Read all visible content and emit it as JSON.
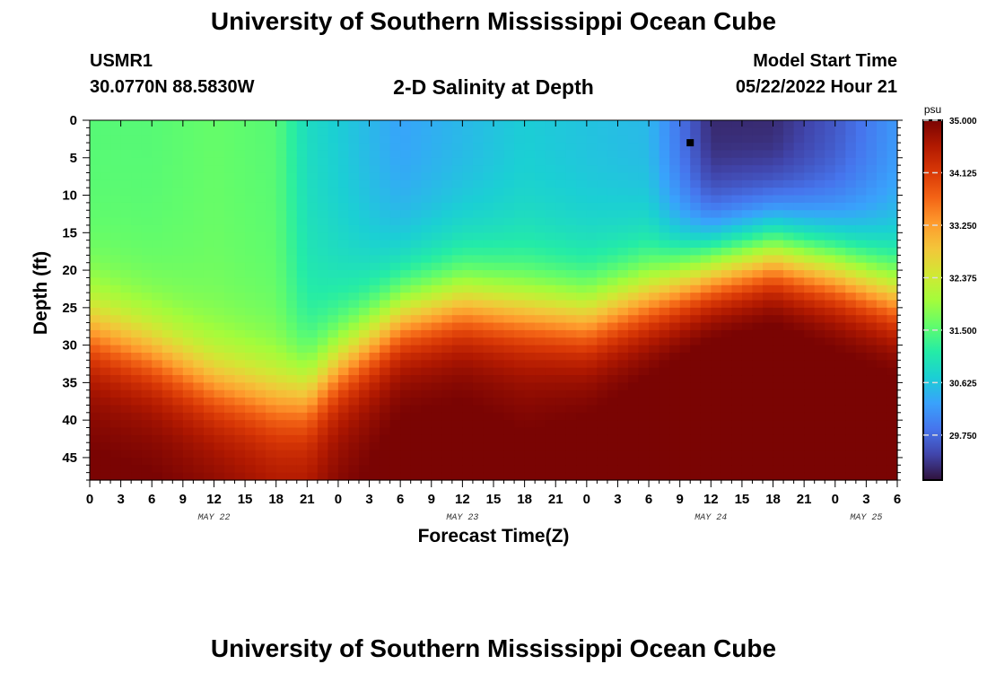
{
  "header": {
    "title": "University of Southern Mississippi Ocean Cube",
    "station": "USMR1",
    "coordinates": "30.0770N  88.5830W",
    "subtitle": "2-D Salinity at Depth",
    "start_label": "Model Start Time",
    "start_value": "05/22/2022 Hour 21"
  },
  "footer": {
    "title": "University of Southern Mississippi Ocean Cube"
  },
  "chart_data": {
    "type": "heatmap",
    "title": "2-D Salinity at Depth",
    "xlabel": "Forecast Time(Z)",
    "ylabel": "Depth (ft)",
    "x_tick_labels": [
      "0",
      "3",
      "6",
      "9",
      "12",
      "15",
      "18",
      "21",
      "0",
      "3",
      "6",
      "9",
      "12",
      "15",
      "18",
      "21",
      "0",
      "3",
      "6",
      "9",
      "12",
      "15",
      "18",
      "21",
      "0",
      "3",
      "6"
    ],
    "x_range_hours": [
      0,
      78
    ],
    "date_labels": [
      {
        "label": "MAY 22",
        "hour": 12
      },
      {
        "label": "MAY 23",
        "hour": 36
      },
      {
        "label": "MAY 24",
        "hour": 60
      },
      {
        "label": "MAY 25",
        "hour": 75
      }
    ],
    "y_tick_labels": [
      "0",
      "5",
      "10",
      "15",
      "20",
      "25",
      "30",
      "35",
      "40",
      "45"
    ],
    "ylim": [
      0,
      48
    ],
    "y_inverted": true,
    "colorbar": {
      "unit": "psu",
      "range": [
        29.0,
        35.0
      ],
      "tick_labels": [
        "35.000",
        "34.125",
        "33.250",
        "32.375",
        "31.500",
        "30.625",
        "29.750"
      ],
      "colors": [
        "#30123b",
        "#4145ab",
        "#4675ed",
        "#39a2fc",
        "#1bcfd4",
        "#24eca6",
        "#61fc6c",
        "#a4fc3b",
        "#d1e834",
        "#f3c63a",
        "#fe9b2d",
        "#f36315",
        "#d93806",
        "#b11901",
        "#7a0403"
      ]
    },
    "depth_profile": {
      "hours": [
        0,
        6,
        12,
        18,
        21,
        24,
        30,
        36,
        42,
        48,
        54,
        60,
        66,
        72,
        78
      ],
      "halocline_depth_ft": [
        28,
        31,
        35,
        37,
        37,
        33,
        27,
        25,
        26,
        27,
        24,
        21,
        19,
        21,
        24
      ],
      "surface_salinity_psu": [
        31.5,
        31.5,
        31.6,
        31.5,
        30.9,
        30.7,
        30.3,
        30.5,
        30.7,
        30.6,
        30.5,
        29.2,
        29.2,
        29.6,
        30.2
      ],
      "bottom_salinity_psu": [
        34.7,
        34.7,
        34.6,
        34.4,
        34.4,
        34.6,
        34.8,
        34.8,
        34.7,
        34.8,
        34.9,
        35.0,
        35.0,
        34.9,
        34.9
      ]
    },
    "marker": {
      "hour": 58,
      "depth_ft": 3
    }
  }
}
